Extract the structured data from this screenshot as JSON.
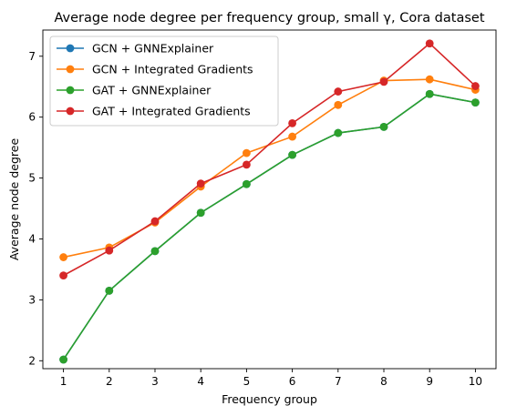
{
  "chart_data": {
    "type": "line",
    "title": "Average node degree per frequency group, small γ, Cora dataset",
    "xlabel": "Frequency group",
    "ylabel": "Average node degree",
    "x": [
      1,
      2,
      3,
      4,
      5,
      6,
      7,
      8,
      9,
      10
    ],
    "xlim": [
      0.55,
      10.45
    ],
    "ylim": [
      1.87,
      7.43
    ],
    "xticks": [
      "1",
      "2",
      "3",
      "4",
      "5",
      "6",
      "7",
      "8",
      "9",
      "10"
    ],
    "yticks": [
      "2",
      "3",
      "4",
      "5",
      "6",
      "7"
    ],
    "grid": false,
    "legend_position": "upper-left",
    "series": [
      {
        "name": "GCN + GNNExplainer",
        "color": "#1f77b4",
        "values": [
          2.02,
          3.15,
          3.8,
          4.43,
          4.9,
          5.38,
          5.74,
          5.84,
          6.38,
          6.24
        ]
      },
      {
        "name": "GCN + Integrated Gradients",
        "color": "#ff7f0e",
        "values": [
          3.7,
          3.86,
          4.27,
          4.86,
          5.41,
          5.68,
          6.2,
          6.6,
          6.62,
          6.45
        ]
      },
      {
        "name": "GAT + GNNExplainer",
        "color": "#2ca02c",
        "values": [
          2.02,
          3.15,
          3.8,
          4.43,
          4.9,
          5.38,
          5.74,
          5.84,
          6.38,
          6.24
        ]
      },
      {
        "name": "GAT + Integrated Gradients",
        "color": "#d62728",
        "values": [
          3.4,
          3.81,
          4.29,
          4.91,
          5.22,
          5.9,
          6.42,
          6.58,
          7.21,
          6.51
        ]
      }
    ]
  }
}
